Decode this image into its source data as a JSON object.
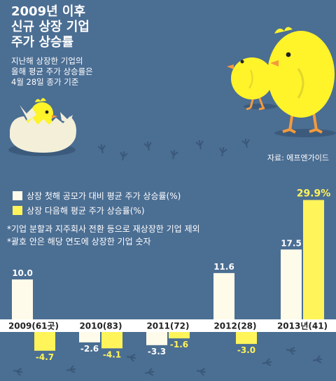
{
  "title_lines": [
    "2009년 이후",
    "신규 상장 기업",
    "주가 상승률"
  ],
  "subtitle_lines": [
    "지난해 상장한 기업의",
    "올해 평균 주가 상승률은",
    "4월 28일 종가 기준"
  ],
  "source": "자료: 에프엔가이드",
  "notes": [
    "*기업 분할과 지주회사 전환 등으로 재상장한 기업 제외",
    "*괄호 안은 해당 연도에 상장한 기업 숫자"
  ],
  "colors": {
    "background": "#4b6e93",
    "first_year": "#fffbea",
    "next_year": "#fff45a",
    "chick": "#fff32a",
    "beak": "#f49a3c",
    "egg": "#f3efd8"
  },
  "icons": [
    "hatching-chick-egg-illustration",
    "chick-illustration",
    "footprints-illustration"
  ],
  "chart_data": {
    "type": "bar",
    "categories": [
      "2009(61곳)",
      "2010(83)",
      "2011(72)",
      "2012(28)",
      "2013년(41)"
    ],
    "series": [
      {
        "name": "상장 첫해 공모가 대비 평균 주가 상승률(%)",
        "values": [
          10.0,
          -2.6,
          -3.3,
          11.6,
          17.5
        ],
        "labels": [
          "10.0",
          "-2.6",
          "-3.3",
          "11.6",
          "17.5"
        ]
      },
      {
        "name": "상장 다음해 평균 주가 상승률(%)",
        "values": [
          -4.7,
          -4.1,
          -1.6,
          -3.0,
          29.9
        ],
        "labels": [
          "-4.7",
          "-4.1",
          "-1.6",
          "-3.0",
          "29.9%"
        ]
      }
    ]
  }
}
